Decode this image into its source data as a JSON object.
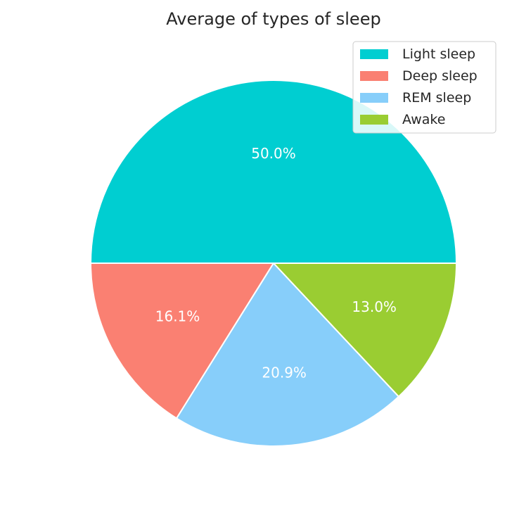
{
  "chart_data": {
    "type": "pie",
    "title": "Average of types of sleep",
    "start_angle_deg": 0,
    "direction": "counterclockwise",
    "slices": [
      {
        "label": "Light sleep",
        "value": 50.0,
        "pct_label": "50.0%",
        "color": "#00ced1"
      },
      {
        "label": "Deep sleep",
        "value": 16.1,
        "pct_label": "16.1%",
        "color": "#fa8072"
      },
      {
        "label": "REM sleep",
        "value": 20.9,
        "pct_label": "20.9%",
        "color": "#87cefa"
      },
      {
        "label": "Awake",
        "value": 13.0,
        "pct_label": "13.0%",
        "color": "#9acd32"
      }
    ],
    "legend_position": "top-right"
  }
}
